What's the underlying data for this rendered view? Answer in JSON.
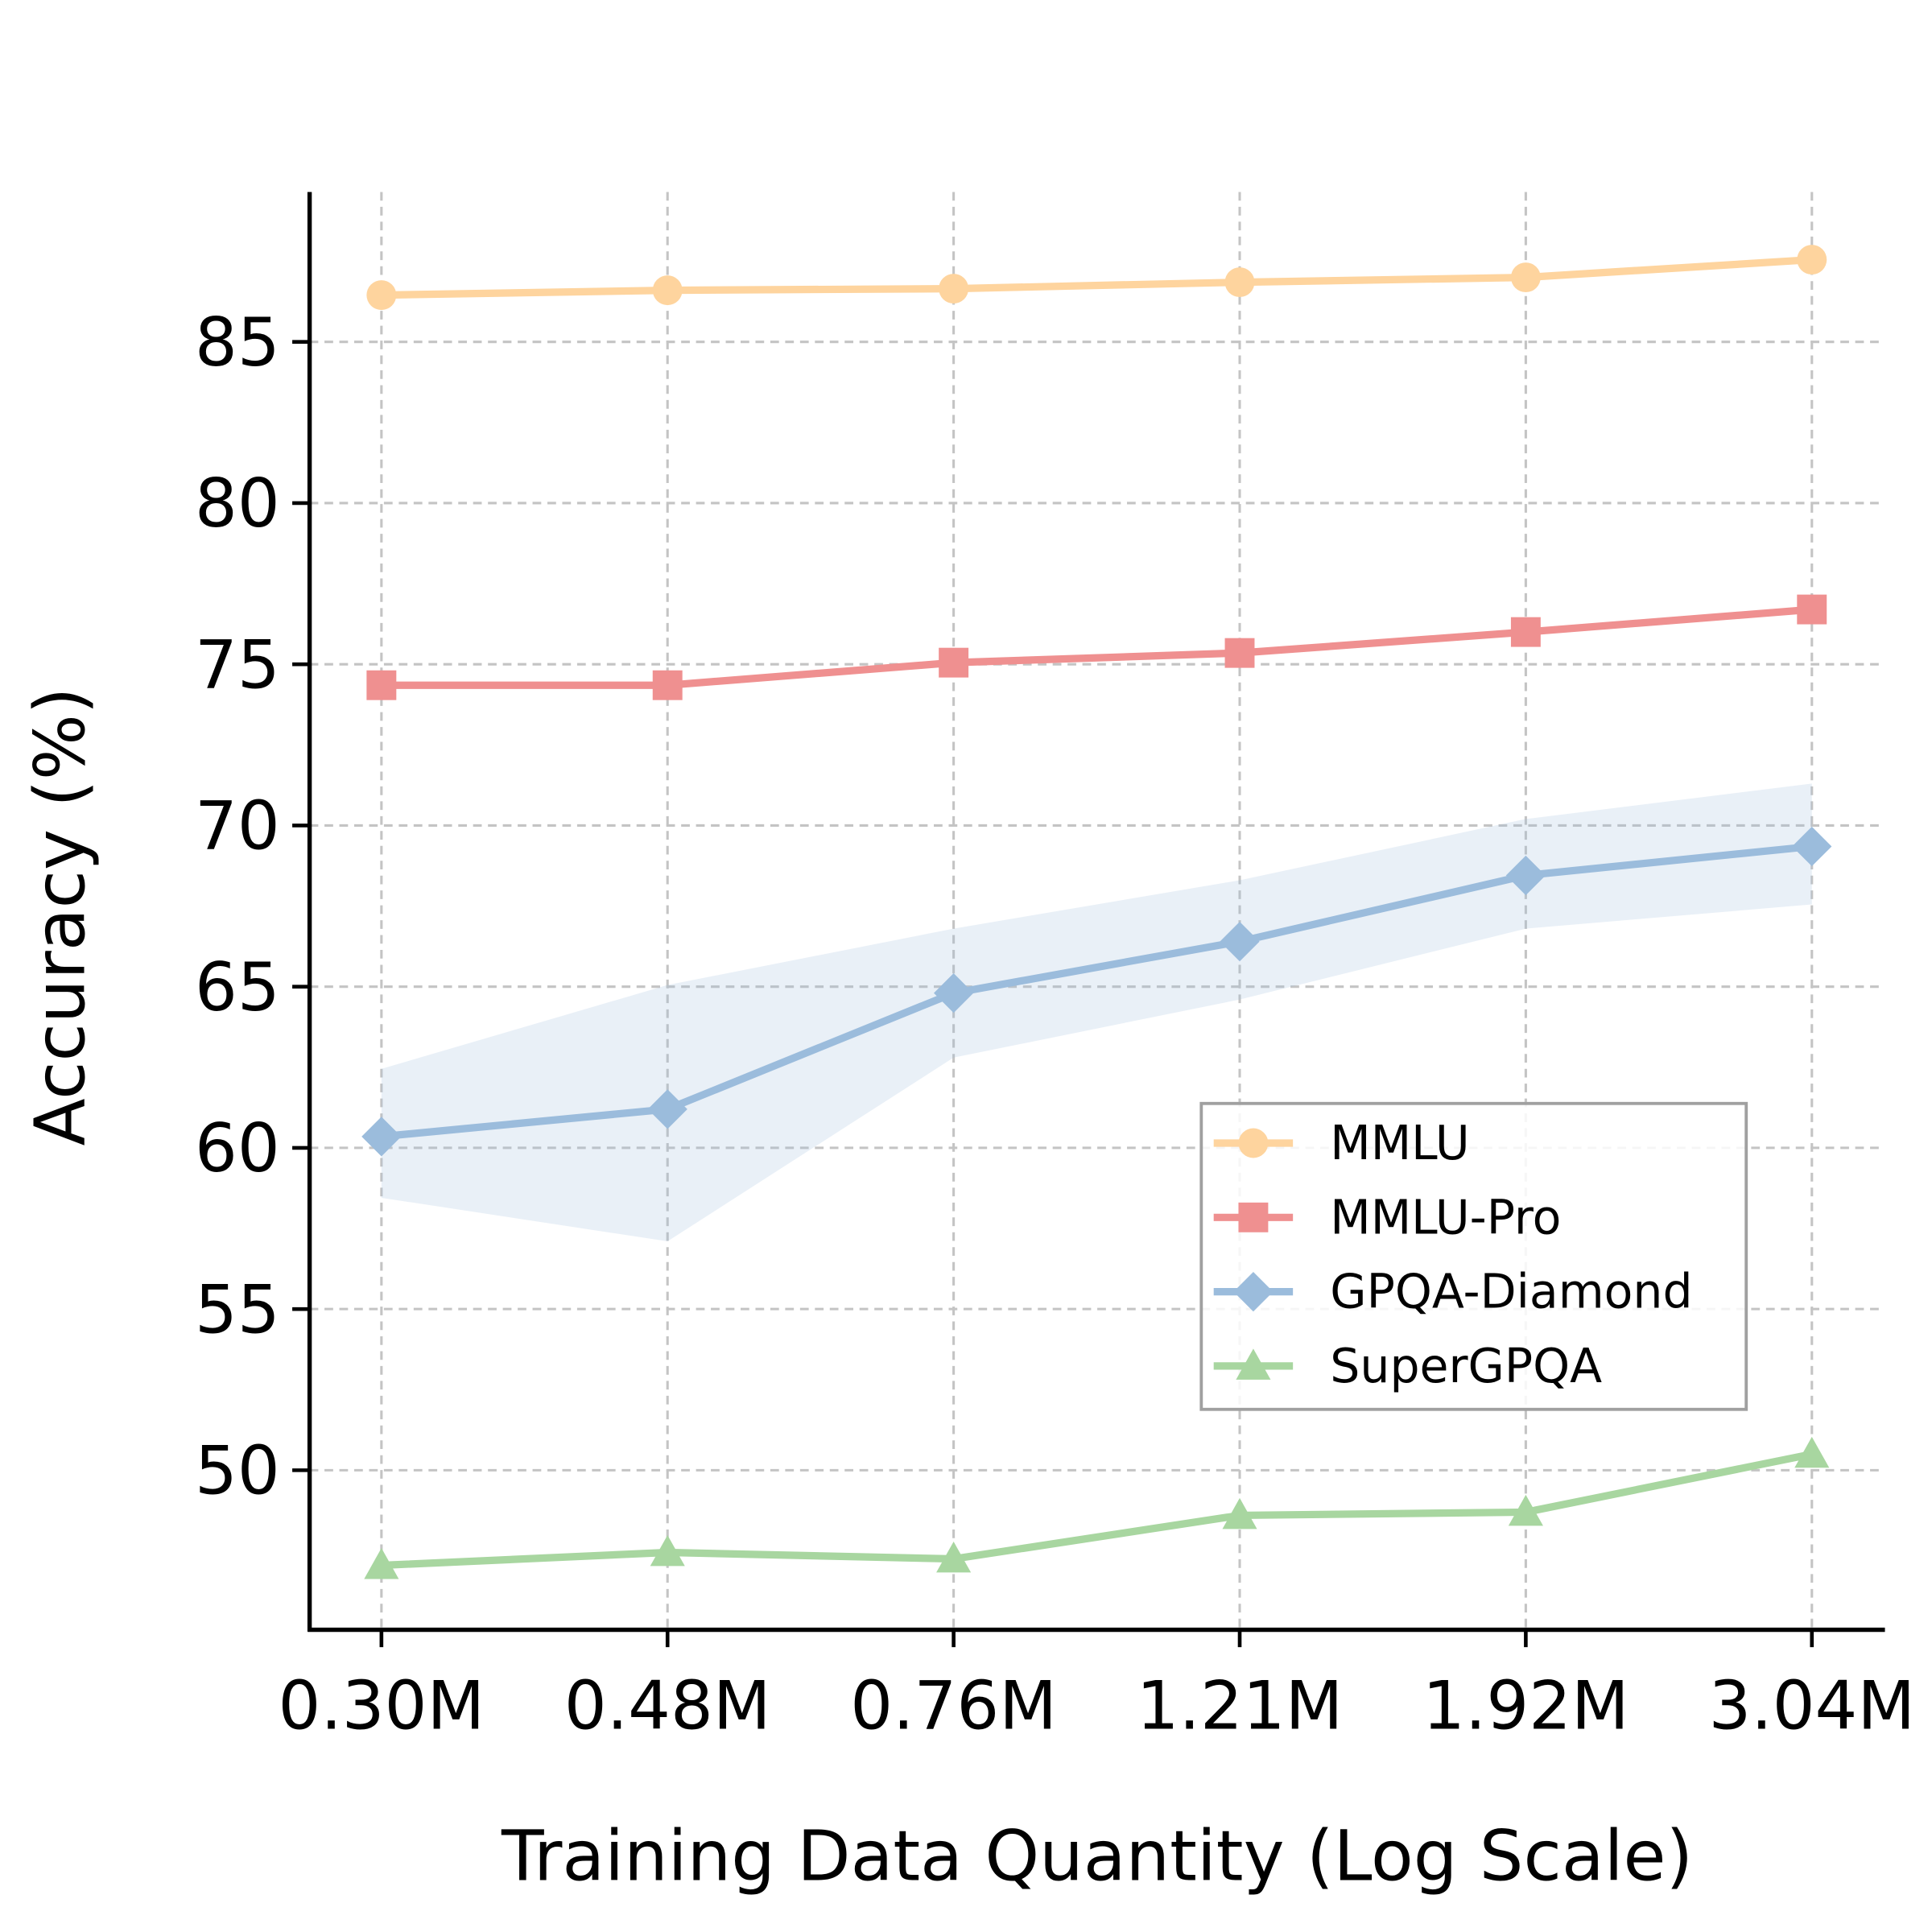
{
  "chart_data": {
    "type": "line",
    "title": "",
    "xlabel": "Training Data Quantity (Log Scale)",
    "ylabel": "Accuracy (%)",
    "categories": [
      "0.30M",
      "0.48M",
      "0.76M",
      "1.21M",
      "1.92M",
      "3.04M"
    ],
    "ylim": [
      45.05,
      89.65
    ],
    "yticks": [
      50,
      55,
      60,
      65,
      70,
      75,
      80,
      85
    ],
    "grid": true,
    "legend_placement": "center-right",
    "series": [
      {
        "name": "MMLU",
        "color": "#fed49e",
        "marker": "circle",
        "values": [
          86.45,
          86.6,
          86.65,
          86.85,
          87.0,
          87.55
        ]
      },
      {
        "name": "MMLU-Pro",
        "color": "#ef9090",
        "marker": "square",
        "values": [
          74.35,
          74.35,
          75.05,
          75.35,
          76.0,
          76.7
        ]
      },
      {
        "name": "GPQA-Diamond",
        "color": "#9bbcdc",
        "marker": "diamond",
        "values": [
          60.35,
          61.2,
          64.8,
          66.4,
          68.45,
          69.35
        ],
        "band_upper": [
          62.45,
          65.05,
          66.8,
          68.3,
          70.2,
          71.3
        ],
        "band_lower": [
          58.45,
          57.1,
          62.8,
          64.6,
          66.8,
          67.55
        ]
      },
      {
        "name": "SuperGPQA",
        "color": "#a8d6a0",
        "marker": "triangle",
        "values": [
          47.05,
          47.45,
          47.25,
          48.6,
          48.7,
          50.5
        ]
      }
    ]
  }
}
